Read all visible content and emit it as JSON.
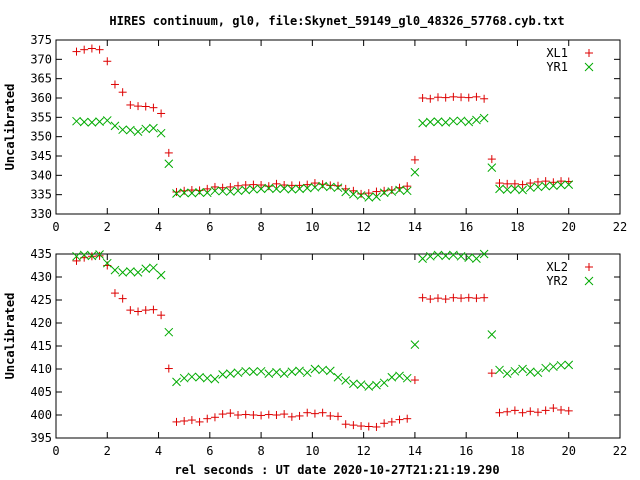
{
  "title": "HIRES continuum, gl0, file:Skynet_59149_gl0_48326_57768.cyb.txt",
  "xlabel": "rel seconds : UT date 2020-10-27T21:21:19.290",
  "colors": {
    "plus": "#dd0000",
    "cross": "#00aa00",
    "axis": "#000000"
  },
  "chart_data": [
    {
      "type": "scatter",
      "ylabel": "Uncalibrated",
      "xlim": [
        0,
        22
      ],
      "ylim": [
        330,
        375
      ],
      "xticks": [
        0,
        2,
        4,
        6,
        8,
        10,
        12,
        14,
        16,
        18,
        20,
        22
      ],
      "yticks": [
        330,
        335,
        340,
        345,
        350,
        355,
        360,
        365,
        370,
        375
      ],
      "grid": false,
      "legend_position": "top-right",
      "series": [
        {
          "name": "XL1",
          "marker": "plus",
          "x": [
            0.8,
            1.1,
            1.4,
            1.7,
            2.0,
            2.3,
            2.6,
            2.9,
            3.2,
            3.5,
            3.8,
            4.1,
            4.4,
            4.7,
            5.0,
            5.3,
            5.6,
            5.9,
            6.2,
            6.5,
            6.8,
            7.1,
            7.4,
            7.7,
            8.0,
            8.3,
            8.6,
            8.9,
            9.2,
            9.5,
            9.8,
            10.1,
            10.4,
            10.7,
            11.0,
            11.3,
            11.6,
            11.9,
            12.2,
            12.5,
            12.8,
            13.1,
            13.4,
            13.7,
            14.0,
            14.3,
            14.6,
            14.9,
            15.2,
            15.5,
            15.8,
            16.1,
            16.4,
            16.7,
            17.0,
            17.3,
            17.6,
            17.9,
            18.2,
            18.5,
            18.8,
            19.1,
            19.4,
            19.7,
            20.0
          ],
          "y": [
            372.0,
            372.5,
            372.8,
            372.5,
            369.5,
            363.5,
            361.5,
            358.2,
            357.9,
            357.8,
            357.5,
            356.0,
            345.8,
            335.7,
            336.0,
            336.2,
            336.1,
            336.5,
            337.0,
            336.8,
            337.0,
            337.3,
            337.5,
            337.6,
            337.5,
            337.2,
            337.8,
            337.5,
            337.4,
            337.4,
            337.6,
            338.0,
            337.7,
            337.4,
            337.3,
            336.5,
            336.0,
            335.2,
            335.4,
            335.8,
            336.0,
            336.2,
            336.8,
            337.2,
            344.0,
            360.0,
            359.8,
            360.2,
            360.1,
            360.3,
            360.2,
            360.1,
            360.3,
            359.8,
            344.2,
            338.0,
            337.8,
            337.8,
            337.6,
            338.0,
            338.3,
            338.5,
            338.2,
            338.5,
            338.4
          ]
        },
        {
          "name": "YR1",
          "marker": "cross",
          "x": [
            0.8,
            1.1,
            1.4,
            1.7,
            2.0,
            2.3,
            2.6,
            2.9,
            3.2,
            3.5,
            3.8,
            4.1,
            4.4,
            4.7,
            5.0,
            5.3,
            5.6,
            5.9,
            6.2,
            6.5,
            6.8,
            7.1,
            7.4,
            7.7,
            8.0,
            8.3,
            8.6,
            8.9,
            9.2,
            9.5,
            9.8,
            10.1,
            10.4,
            10.7,
            11.0,
            11.3,
            11.6,
            11.9,
            12.2,
            12.5,
            12.8,
            13.1,
            13.4,
            13.7,
            14.0,
            14.3,
            14.6,
            14.9,
            15.2,
            15.5,
            15.8,
            16.1,
            16.4,
            16.7,
            17.0,
            17.3,
            17.6,
            17.9,
            18.2,
            18.5,
            18.8,
            19.1,
            19.4,
            19.7,
            20.0
          ],
          "y": [
            354.0,
            353.8,
            353.7,
            353.9,
            354.2,
            352.8,
            351.8,
            351.7,
            351.3,
            352.0,
            352.2,
            350.9,
            343.0,
            335.3,
            335.5,
            335.4,
            335.6,
            335.5,
            336.0,
            335.9,
            335.8,
            336.0,
            336.2,
            336.4,
            336.5,
            336.7,
            336.5,
            336.6,
            336.4,
            336.5,
            336.7,
            336.9,
            337.2,
            337.0,
            336.8,
            335.7,
            335.1,
            334.8,
            334.3,
            334.5,
            335.5,
            335.8,
            336.2,
            336.0,
            340.8,
            353.5,
            353.8,
            353.9,
            353.7,
            354.0,
            354.1,
            353.8,
            354.3,
            354.8,
            342.0,
            336.5,
            336.3,
            336.5,
            336.2,
            336.8,
            337.0,
            337.2,
            337.3,
            337.5,
            337.6
          ]
        }
      ]
    },
    {
      "type": "scatter",
      "ylabel": "Uncalibrated",
      "xlim": [
        0,
        22
      ],
      "ylim": [
        395,
        435
      ],
      "xticks": [
        0,
        2,
        4,
        6,
        8,
        10,
        12,
        14,
        16,
        18,
        20,
        22
      ],
      "yticks": [
        395,
        400,
        405,
        410,
        415,
        420,
        425,
        430,
        435
      ],
      "grid": false,
      "legend_position": "top-right",
      "series": [
        {
          "name": "XL2",
          "marker": "plus",
          "x": [
            0.8,
            1.1,
            1.4,
            1.7,
            2.0,
            2.3,
            2.6,
            2.9,
            3.2,
            3.5,
            3.8,
            4.1,
            4.4,
            4.7,
            5.0,
            5.3,
            5.6,
            5.9,
            6.2,
            6.5,
            6.8,
            7.1,
            7.4,
            7.7,
            8.0,
            8.3,
            8.6,
            8.9,
            9.2,
            9.5,
            9.8,
            10.1,
            10.4,
            10.7,
            11.0,
            11.3,
            11.6,
            11.9,
            12.2,
            12.5,
            12.8,
            13.1,
            13.4,
            13.7,
            14.0,
            14.3,
            14.6,
            14.9,
            15.2,
            15.5,
            15.8,
            16.1,
            16.4,
            16.7,
            17.0,
            17.3,
            17.6,
            17.9,
            18.2,
            18.5,
            18.8,
            19.1,
            19.4,
            19.7,
            20.0
          ],
          "y": [
            433.5,
            434.2,
            434.5,
            434.6,
            432.5,
            426.5,
            425.3,
            422.8,
            422.5,
            422.8,
            422.9,
            421.7,
            410.1,
            398.5,
            398.7,
            398.9,
            398.5,
            399.2,
            399.5,
            400.2,
            400.4,
            400.0,
            400.1,
            400.0,
            399.9,
            400.1,
            400.0,
            400.2,
            399.6,
            399.8,
            400.5,
            400.3,
            400.5,
            399.8,
            399.7,
            398.0,
            397.8,
            397.6,
            397.5,
            397.4,
            398.2,
            398.5,
            399.0,
            399.2,
            407.6,
            425.5,
            425.2,
            425.4,
            425.2,
            425.5,
            425.4,
            425.5,
            425.4,
            425.5,
            409.1,
            400.5,
            400.7,
            401.0,
            400.5,
            400.8,
            400.6,
            401.0,
            401.5,
            401.1,
            400.9
          ]
        },
        {
          "name": "YR2",
          "marker": "cross",
          "x": [
            0.8,
            1.1,
            1.4,
            1.7,
            2.0,
            2.3,
            2.6,
            2.9,
            3.2,
            3.5,
            3.8,
            4.1,
            4.4,
            4.7,
            5.0,
            5.3,
            5.6,
            5.9,
            6.2,
            6.5,
            6.8,
            7.1,
            7.4,
            7.7,
            8.0,
            8.3,
            8.6,
            8.9,
            9.2,
            9.5,
            9.8,
            10.1,
            10.4,
            10.7,
            11.0,
            11.3,
            11.6,
            11.9,
            12.2,
            12.5,
            12.8,
            13.1,
            13.4,
            13.7,
            14.0,
            14.3,
            14.6,
            14.9,
            15.2,
            15.5,
            15.8,
            16.1,
            16.4,
            16.7,
            17.0,
            17.3,
            17.6,
            17.9,
            18.2,
            18.5,
            18.8,
            19.1,
            19.4,
            19.7,
            20.0
          ],
          "y": [
            434.5,
            434.8,
            434.6,
            434.9,
            433.0,
            431.5,
            431.0,
            431.2,
            431.0,
            431.8,
            432.0,
            430.4,
            418.0,
            407.2,
            408.0,
            408.3,
            408.2,
            408.0,
            407.8,
            408.8,
            409.0,
            409.2,
            409.5,
            409.4,
            409.5,
            409.0,
            409.3,
            409.0,
            409.4,
            409.6,
            409.2,
            410.0,
            409.8,
            409.6,
            408.2,
            407.5,
            406.8,
            406.6,
            406.2,
            406.5,
            407.0,
            408.2,
            408.5,
            408.0,
            415.3,
            434.0,
            434.5,
            434.8,
            434.6,
            434.8,
            434.5,
            434.2,
            434.0,
            435.0,
            417.5,
            409.8,
            409.0,
            409.5,
            410.0,
            409.4,
            409.2,
            410.2,
            410.5,
            410.8,
            410.9
          ]
        }
      ]
    }
  ]
}
